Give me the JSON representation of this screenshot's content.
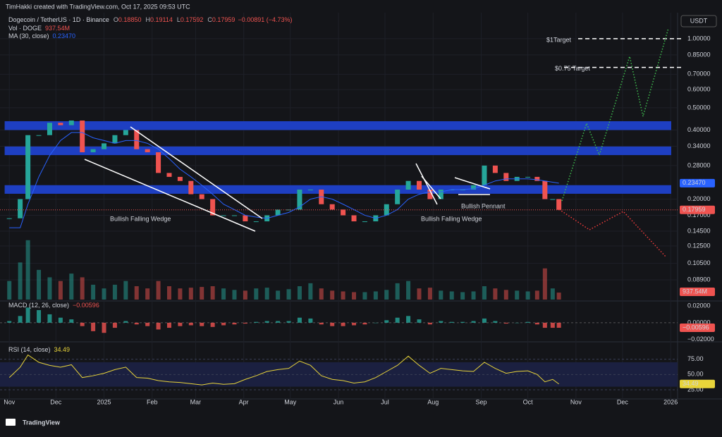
{
  "header": {
    "credit": "TimHakki created with TradingView.com, Oct 17, 2025 09:53 UTC",
    "currency": "USDT",
    "brand": "TradingView"
  },
  "chart_data": {
    "type": "candlestick",
    "title": "Dogecoin / TetherUS · 1D · Binance",
    "ohlc": [
      {
        "key": "O",
        "text": "0.18850"
      },
      {
        "key": "H",
        "text": "0.19114"
      },
      {
        "key": "L",
        "text": "0.17592"
      },
      {
        "key": "C",
        "text": "0.17959"
      }
    ],
    "change": "−0.00891 (−4.73%)",
    "log_scale": true,
    "grid": true,
    "up_color": "#26a69a",
    "down_color": "#ef5350",
    "x": [
      0,
      7,
      12,
      19,
      26,
      33,
      40,
      47,
      54,
      61,
      68,
      75,
      82,
      89,
      96,
      103,
      110,
      117,
      124,
      131,
      138,
      145,
      152,
      159,
      166,
      173,
      180,
      187,
      194,
      201,
      208,
      215,
      222,
      229,
      236,
      243,
      250,
      257,
      264,
      271,
      278,
      285,
      292,
      299,
      306,
      313,
      320,
      327,
      334,
      340,
      345,
      350,
      354
    ],
    "values": [
      0.165,
      0.2,
      0.38,
      0.38,
      0.43,
      0.42,
      0.44,
      0.32,
      0.33,
      0.35,
      0.38,
      0.4,
      0.33,
      0.32,
      0.26,
      0.25,
      0.24,
      0.21,
      0.2,
      0.17,
      0.17,
      0.17,
      0.16,
      0.16,
      0.17,
      0.18,
      0.18,
      0.22,
      0.22,
      0.19,
      0.18,
      0.17,
      0.16,
      0.16,
      0.17,
      0.19,
      0.22,
      0.24,
      0.22,
      0.2,
      0.22,
      0.22,
      0.22,
      0.23,
      0.28,
      0.26,
      0.24,
      0.25,
      0.25,
      0.24,
      0.2,
      0.2,
      0.17959
    ],
    "xlim": [
      -6,
      430
    ],
    "xticks": [
      {
        "value": 0,
        "label": "Nov"
      },
      {
        "value": 30,
        "label": "Dec"
      },
      {
        "value": 61,
        "label": "2025"
      },
      {
        "value": 92,
        "label": "Feb"
      },
      {
        "value": 120,
        "label": "Mar"
      },
      {
        "value": 151,
        "label": "Apr"
      },
      {
        "value": 181,
        "label": "May"
      },
      {
        "value": 212,
        "label": "Jun"
      },
      {
        "value": 242,
        "label": "Jul"
      },
      {
        "value": 273,
        "label": "Aug"
      },
      {
        "value": 304,
        "label": "Sep"
      },
      {
        "value": 334,
        "label": "Oct"
      },
      {
        "value": 365,
        "label": "Nov"
      },
      {
        "value": 395,
        "label": "Dec"
      },
      {
        "value": 426,
        "label": "2026"
      }
    ],
    "ylim": [
      0.073,
      1.28
    ],
    "yticks": [
      {
        "value": 1,
        "label": "1.00000"
      },
      {
        "value": 0.85,
        "label": "0.85000"
      },
      {
        "value": 0.7,
        "label": "0.70000"
      },
      {
        "value": 0.6,
        "label": "0.60000"
      },
      {
        "value": 0.5,
        "label": "0.50000"
      },
      {
        "value": 0.4,
        "label": "0.40000"
      },
      {
        "value": 0.34,
        "label": "0.34000"
      },
      {
        "value": 0.28,
        "label": "0.28000"
      },
      {
        "value": 0.2,
        "label": "0.20000"
      },
      {
        "value": 0.17,
        "label": "0.17000"
      },
      {
        "value": 0.145,
        "label": "0.14500"
      },
      {
        "value": 0.125,
        "label": "0.12500"
      },
      {
        "value": 0.105,
        "label": "0.10500"
      },
      {
        "value": 0.089,
        "label": "0.08900"
      }
    ],
    "zones": [
      [
        0.4,
        0.437
      ],
      [
        0.311,
        0.339
      ],
      [
        0.211,
        0.23
      ]
    ],
    "zone_color": "#1e3fc2",
    "targets": [
      {
        "label": "$1Target",
        "value": 1
      },
      {
        "label": "$0.75 Target",
        "value": 0.75
      }
    ],
    "annotations": [
      {
        "text": "Bullish Falling Wedge"
      },
      {
        "text": "Bullish Falling Wedge"
      },
      {
        "text": "Bullish Pennant"
      }
    ],
    "volume": {
      "name": "Vol · DOGE",
      "last_label": "937.54M",
      "values": [
        2500,
        5000,
        8000,
        4000,
        3000,
        2500,
        3500,
        3000,
        2000,
        1500,
        2000,
        2500,
        1800,
        1500,
        2500,
        1800,
        1500,
        1600,
        1700,
        1800,
        1500,
        1300,
        1200,
        1500,
        1600,
        1200,
        1400,
        1800,
        2200,
        1500,
        1200,
        1100,
        1000,
        1000,
        1100,
        1300,
        2200,
        2500,
        1500,
        1600,
        1200,
        1100,
        1000,
        1100,
        1800,
        1500,
        1300,
        1200,
        1100,
        1200,
        4200,
        1500,
        937.54
      ]
    },
    "ma": {
      "name": "MA (30, close)",
      "last_label": "0.23470",
      "color": "#2962ff",
      "values": [
        0.15,
        0.15,
        0.19,
        0.25,
        0.31,
        0.36,
        0.39,
        0.39,
        0.37,
        0.36,
        0.35,
        0.36,
        0.36,
        0.35,
        0.33,
        0.3,
        0.27,
        0.25,
        0.23,
        0.21,
        0.19,
        0.18,
        0.17,
        0.167,
        0.165,
        0.17,
        0.175,
        0.185,
        0.2,
        0.205,
        0.2,
        0.19,
        0.18,
        0.17,
        0.165,
        0.17,
        0.18,
        0.2,
        0.21,
        0.215,
        0.215,
        0.22,
        0.22,
        0.222,
        0.23,
        0.24,
        0.245,
        0.245,
        0.245,
        0.243,
        0.24,
        0.237,
        0.2347
      ]
    },
    "macd": {
      "name": "MACD (12, 26, close)",
      "last_label": "−0.00596",
      "ylim": [
        -0.021,
        0.0275
      ],
      "yticks": [
        {
          "value": 0.02,
          "label": "0.02000"
        },
        {
          "value": 0,
          "label": "0.00000"
        },
        {
          "value": -0.02,
          "label": "−0.02000"
        }
      ],
      "values": [
        0.002,
        0.008,
        0.018,
        0.015,
        0.01,
        0.006,
        0.004,
        -0.004,
        -0.01,
        -0.012,
        -0.006,
        0.002,
        -0.002,
        -0.004,
        -0.008,
        -0.006,
        -0.004,
        -0.003,
        -0.004,
        -0.005,
        -0.003,
        -0.002,
        -0.001,
        0.001,
        0.002,
        0.002,
        0.002,
        0.006,
        0.005,
        -0.002,
        -0.004,
        -0.004,
        -0.003,
        -0.002,
        0,
        0.003,
        0.006,
        0.008,
        0.004,
        -0.002,
        0.002,
        0.001,
        0.001,
        0.002,
        0.005,
        0.002,
        -0.001,
        0,
        0.001,
        -0.002,
        -0.006,
        -0.006,
        -0.00596
      ]
    },
    "rsi": {
      "name": "RSI (14, close)",
      "color": "#e8d43a",
      "ylim": [
        10,
        100
      ],
      "band": [
        30,
        70
      ],
      "yticks": [
        {
          "value": 75,
          "label": "75.00"
        },
        {
          "value": 50,
          "label": "50.00"
        },
        {
          "value": 25,
          "label": "25.00"
        }
      ],
      "values": [
        45,
        62,
        82,
        70,
        65,
        62,
        66,
        45,
        48,
        52,
        58,
        62,
        45,
        44,
        40,
        38,
        37,
        35,
        33,
        36,
        34,
        35,
        42,
        48,
        55,
        58,
        60,
        72,
        65,
        48,
        42,
        40,
        36,
        38,
        45,
        55,
        65,
        80,
        65,
        52,
        60,
        58,
        56,
        55,
        70,
        60,
        52,
        55,
        56,
        50,
        38,
        42,
        34.49
      ]
    }
  }
}
